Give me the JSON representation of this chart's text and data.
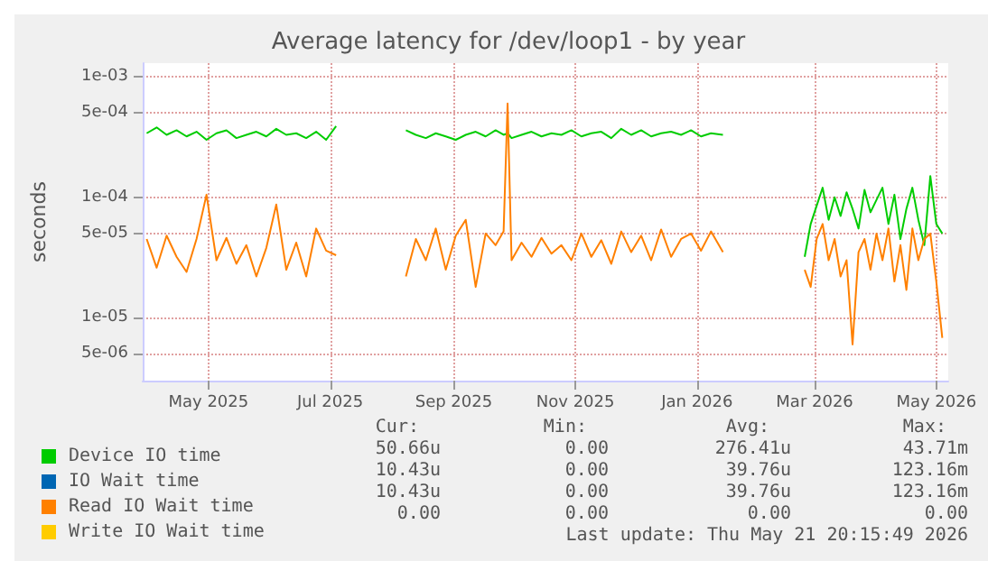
{
  "chart_data": {
    "type": "line",
    "title": "Average latency for /dev/loop1 - by year",
    "ylabel": "seconds",
    "log": true,
    "grid": true,
    "legend": "bottom left",
    "marker": "none",
    "xlim": [
      "2025-03-29",
      "2026-05-07"
    ],
    "xticks": [
      {
        "value": "2025-05-01",
        "label": "May 2025"
      },
      {
        "value": "2025-07-01",
        "label": "Jul 2025"
      },
      {
        "value": "2025-09-01",
        "label": "Sep 2025"
      },
      {
        "value": "2025-11-01",
        "label": "Nov 2025"
      },
      {
        "value": "2026-01-01",
        "label": "Jan 2026"
      },
      {
        "value": "2026-03-01",
        "label": "Mar 2026"
      },
      {
        "value": "2026-05-01",
        "label": "May 2026"
      }
    ],
    "ylim": [
      3e-06,
      0.0013
    ],
    "yticks": [
      {
        "value": 5e-06,
        "label": "5e-06"
      },
      {
        "value": 1e-05,
        "label": "1e-05"
      },
      {
        "value": 5e-05,
        "label": "5e-05"
      },
      {
        "value": 0.0001,
        "label": "1e-04"
      },
      {
        "value": 0.0005,
        "label": "5e-04"
      },
      {
        "value": 0.001,
        "label": "1e-03"
      }
    ],
    "x": [
      "2025-03-31",
      "2025-04-05",
      "2025-04-10",
      "2025-04-15",
      "2025-04-20",
      "2025-04-25",
      "2025-04-30",
      "2025-05-05",
      "2025-05-10",
      "2025-05-15",
      "2025-05-20",
      "2025-05-25",
      "2025-05-30",
      "2025-06-04",
      "2025-06-09",
      "2025-06-14",
      "2025-06-19",
      "2025-06-24",
      "2025-06-29",
      "2025-07-04",
      "2025-07-20",
      "2025-08-08",
      "2025-08-13",
      "2025-08-18",
      "2025-08-23",
      "2025-08-28",
      "2025-09-02",
      "2025-09-07",
      "2025-09-12",
      "2025-09-17",
      "2025-09-22",
      "2025-09-26",
      "2025-09-28",
      "2025-09-30",
      "2025-10-05",
      "2025-10-10",
      "2025-10-15",
      "2025-10-20",
      "2025-10-25",
      "2025-10-30",
      "2025-11-04",
      "2025-11-09",
      "2025-11-14",
      "2025-11-19",
      "2025-11-24",
      "2025-11-29",
      "2025-12-04",
      "2025-12-09",
      "2025-12-14",
      "2025-12-19",
      "2025-12-24",
      "2025-12-29",
      "2026-01-03",
      "2026-01-08",
      "2026-01-14",
      "2026-02-05",
      "2026-02-24",
      "2026-02-27",
      "2026-03-02",
      "2026-03-05",
      "2026-03-08",
      "2026-03-11",
      "2026-03-14",
      "2026-03-17",
      "2026-03-20",
      "2026-03-23",
      "2026-03-26",
      "2026-03-29",
      "2026-04-01",
      "2026-04-04",
      "2026-04-07",
      "2026-04-10",
      "2026-04-13",
      "2026-04-16",
      "2026-04-19",
      "2026-04-22",
      "2026-04-25",
      "2026-04-28",
      "2026-05-01",
      "2026-05-04"
    ],
    "series": [
      {
        "name": "Device IO time",
        "color": "#00cc00",
        "values": [
          0.00034,
          0.00038,
          0.00033,
          0.00036,
          0.00032,
          0.00035,
          0.0003,
          0.00034,
          0.00036,
          0.00031,
          0.00033,
          0.00035,
          0.00032,
          0.00037,
          0.00033,
          0.00034,
          0.00031,
          0.00035,
          0.0003,
          0.00039,
          null,
          0.00036,
          0.00033,
          0.00031,
          0.00034,
          0.00032,
          0.0003,
          0.00033,
          0.00035,
          0.00032,
          0.00036,
          0.00033,
          0.00034,
          0.00031,
          0.00033,
          0.00035,
          0.00032,
          0.00034,
          0.00033,
          0.00036,
          0.00032,
          0.00034,
          0.00035,
          0.00031,
          0.00037,
          0.00033,
          0.00036,
          0.00032,
          0.00034,
          0.00035,
          0.00033,
          0.00036,
          0.00032,
          0.00034,
          0.00033,
          null,
          3.2e-05,
          6e-05,
          8.5e-05,
          0.00012,
          6.5e-05,
          0.0001,
          7e-05,
          0.00011,
          8e-05,
          5.5e-05,
          0.000115,
          7.5e-05,
          9.5e-05,
          0.00012,
          6e-05,
          0.000105,
          4.5e-05,
          8e-05,
          0.00012,
          6.5e-05,
          4e-05,
          0.00015,
          6e-05,
          5e-05
        ]
      },
      {
        "name": "IO Wait time",
        "color": "#0066b3",
        "values": [
          null,
          null,
          null,
          null,
          null,
          null,
          null,
          null,
          null,
          null,
          null,
          null,
          null,
          null,
          null,
          null,
          null,
          null,
          null,
          null,
          null,
          null,
          null,
          null,
          null,
          null,
          null,
          null,
          null,
          null,
          null,
          null,
          null,
          null,
          null,
          null,
          null,
          null,
          null,
          null,
          null,
          null,
          null,
          null,
          null,
          null,
          null,
          null,
          null,
          null,
          null,
          null,
          null,
          null,
          null,
          null,
          null,
          null,
          null,
          null,
          null,
          null,
          null,
          null,
          null,
          null,
          null,
          null,
          null,
          null,
          null,
          null,
          null,
          null,
          null,
          null,
          null,
          null,
          null,
          null
        ]
      },
      {
        "name": "Read IO Wait time",
        "color": "#ff8000",
        "values": [
          4.5e-05,
          2.6e-05,
          4.8e-05,
          3.2e-05,
          2.4e-05,
          4.5e-05,
          0.000105,
          3e-05,
          4.6e-05,
          2.8e-05,
          4e-05,
          2.2e-05,
          3.8e-05,
          8.7e-05,
          2.5e-05,
          4.2e-05,
          2.2e-05,
          5.5e-05,
          3.6e-05,
          3.3e-05,
          null,
          2.2e-05,
          4.5e-05,
          3e-05,
          5.5e-05,
          2.5e-05,
          4.8e-05,
          6.5e-05,
          1.8e-05,
          5e-05,
          4e-05,
          5.2e-05,
          0.0006,
          3e-05,
          4.2e-05,
          3.2e-05,
          4.6e-05,
          3.4e-05,
          4e-05,
          3e-05,
          5e-05,
          3.2e-05,
          4.4e-05,
          2.8e-05,
          5.2e-05,
          3.5e-05,
          4.8e-05,
          3e-05,
          5.4e-05,
          3.2e-05,
          4.5e-05,
          5e-05,
          3.6e-05,
          5.2e-05,
          3.5e-05,
          null,
          2.5e-05,
          1.8e-05,
          4.5e-05,
          6e-05,
          3e-05,
          4.5e-05,
          2.2e-05,
          3e-05,
          6e-06,
          3.5e-05,
          4.5e-05,
          2.5e-05,
          5e-05,
          3e-05,
          5.5e-05,
          2e-05,
          4e-05,
          1.7e-05,
          5.5e-05,
          3e-05,
          4.5e-05,
          5e-05,
          2e-05,
          6.8e-06
        ]
      },
      {
        "name": "Write IO Wait time",
        "color": "#ffcc00",
        "values": [
          null,
          null,
          null,
          null,
          null,
          null,
          null,
          null,
          null,
          null,
          null,
          null,
          null,
          null,
          null,
          null,
          null,
          null,
          null,
          null,
          null,
          null,
          null,
          null,
          null,
          null,
          null,
          null,
          null,
          null,
          null,
          null,
          null,
          null,
          null,
          null,
          null,
          null,
          null,
          null,
          null,
          null,
          null,
          null,
          null,
          null,
          null,
          null,
          null,
          null,
          null,
          null,
          null,
          null,
          null,
          null,
          null,
          null,
          null,
          null,
          null,
          null,
          null,
          null,
          null,
          null,
          null,
          null,
          null,
          null,
          null,
          null,
          null,
          null,
          null,
          null,
          null,
          null,
          null,
          null
        ]
      }
    ],
    "annotations": [
      "Cur:",
      "Min:",
      "Avg:",
      "Max:",
      "50.66u",
      "0.00",
      "276.41u",
      "43.71m",
      "10.43u",
      "0.00",
      "39.76u",
      "123.16m",
      "10.43u",
      "0.00",
      "39.76u",
      "123.16m",
      "0.00",
      "0.00",
      "0.00",
      "0.00",
      "Last update: Thu May 21 20:15:49 2026"
    ]
  }
}
